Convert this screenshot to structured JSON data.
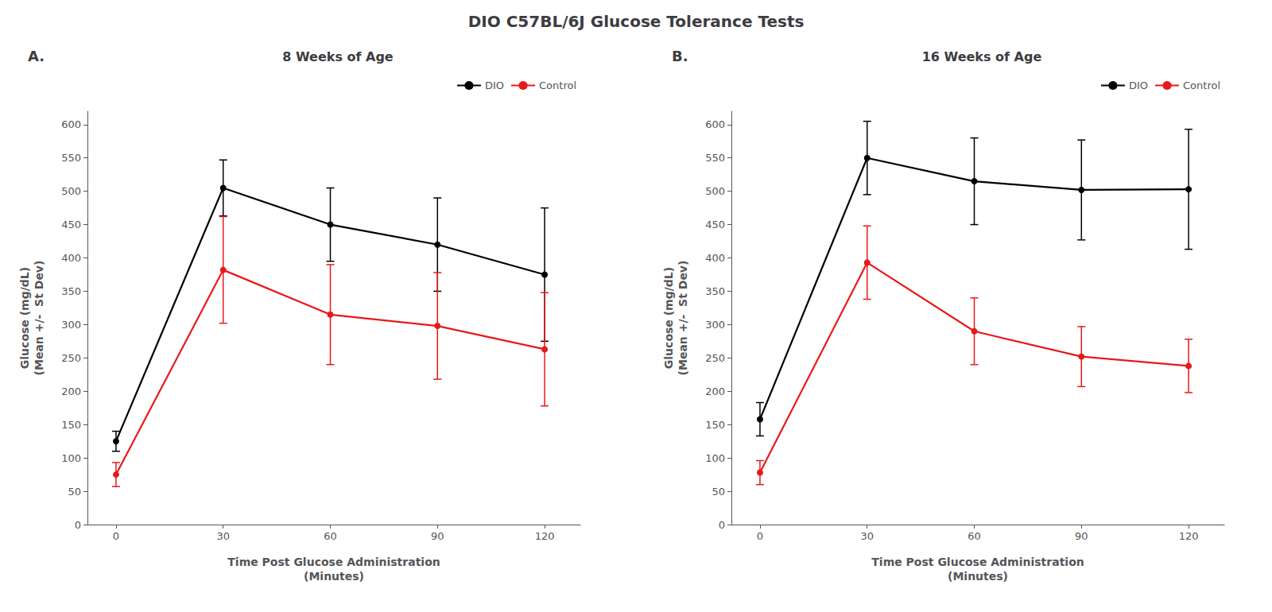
{
  "title": "DIO C57BL/6J Glucose Tolerance Tests",
  "chart_data": [
    {
      "type": "line",
      "title": "8 Weeks of Age",
      "annotations": [
        "A."
      ],
      "x": [
        0,
        30,
        60,
        90,
        120
      ],
      "x_label": "Time Post Glucose Administration\n(Minutes)",
      "y_label": "Glucose (mg/dL)\n(Mean +/-  St Dev)",
      "xlim": [
        -8,
        130
      ],
      "xticks": [
        0,
        30,
        60,
        90,
        120
      ],
      "ylim": [
        0,
        620
      ],
      "yticks": [
        0,
        50,
        100,
        150,
        200,
        250,
        300,
        350,
        400,
        450,
        500,
        550,
        600
      ],
      "grid": false,
      "legend": "upper right",
      "marker": "circle",
      "series": [
        {
          "name": "DIO",
          "color": "#000000",
          "values": [
            125,
            505,
            450,
            420,
            375
          ],
          "errors": [
            15,
            42,
            55,
            70,
            100
          ]
        },
        {
          "name": "Control",
          "color": "#e8191a",
          "values": [
            75,
            382,
            315,
            298,
            263
          ],
          "errors": [
            18,
            80,
            75,
            80,
            85
          ]
        }
      ]
    },
    {
      "type": "line",
      "title": "16 Weeks of Age",
      "annotations": [
        "B."
      ],
      "x": [
        0,
        30,
        60,
        90,
        120
      ],
      "x_label": "Time Post Glucose Administration\n(Minutes)",
      "y_label": "Glucose (mg/dL)\n(Mean +/-  St Dev)",
      "xlim": [
        -8,
        130
      ],
      "xticks": [
        0,
        30,
        60,
        90,
        120
      ],
      "ylim": [
        0,
        620
      ],
      "yticks": [
        0,
        50,
        100,
        150,
        200,
        250,
        300,
        350,
        400,
        450,
        500,
        550,
        600
      ],
      "grid": false,
      "legend": "upper right",
      "marker": "circle",
      "series": [
        {
          "name": "DIO",
          "color": "#000000",
          "values": [
            158,
            550,
            515,
            502,
            503
          ],
          "errors": [
            25,
            55,
            65,
            75,
            90
          ]
        },
        {
          "name": "Control",
          "color": "#e8191a",
          "values": [
            78,
            393,
            290,
            252,
            238
          ],
          "errors": [
            18,
            55,
            50,
            45,
            40
          ]
        }
      ]
    }
  ]
}
